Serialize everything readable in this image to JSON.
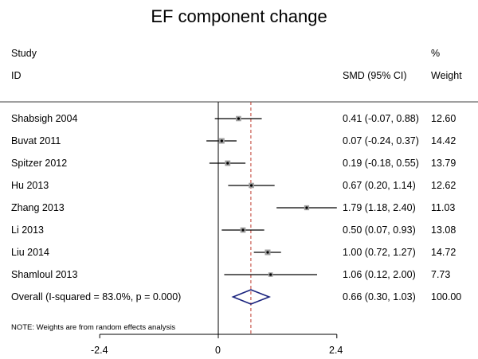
{
  "chart_data": {
    "type": "forest",
    "title": "EF component change",
    "headers": {
      "study_line1": "Study",
      "study_line2": "ID",
      "effect": "SMD (95% CI)",
      "weight_line1": "%",
      "weight_line2": "Weight"
    },
    "studies": [
      {
        "label": "Shabsigh 2004",
        "smd": 0.41,
        "lo": -0.07,
        "hi": 0.88,
        "ci_text": "0.41 (-0.07, 0.88)",
        "weight": 12.6,
        "weight_text": "12.60"
      },
      {
        "label": "Buvat 2011",
        "smd": 0.07,
        "lo": -0.24,
        "hi": 0.37,
        "ci_text": "0.07 (-0.24, 0.37)",
        "weight": 14.42,
        "weight_text": "14.42"
      },
      {
        "label": "Spitzer 2012",
        "smd": 0.19,
        "lo": -0.18,
        "hi": 0.55,
        "ci_text": "0.19 (-0.18, 0.55)",
        "weight": 13.79,
        "weight_text": "13.79"
      },
      {
        "label": "Hu 2013",
        "smd": 0.67,
        "lo": 0.2,
        "hi": 1.14,
        "ci_text": "0.67 (0.20, 1.14)",
        "weight": 12.62,
        "weight_text": "12.62"
      },
      {
        "label": "Zhang 2013",
        "smd": 1.79,
        "lo": 1.18,
        "hi": 2.4,
        "ci_text": "1.79 (1.18, 2.40)",
        "weight": 11.03,
        "weight_text": "11.03"
      },
      {
        "label": "Li 2013",
        "smd": 0.5,
        "lo": 0.07,
        "hi": 0.93,
        "ci_text": "0.50 (0.07, 0.93)",
        "weight": 13.08,
        "weight_text": "13.08"
      },
      {
        "label": "Liu 2014",
        "smd": 1.0,
        "lo": 0.72,
        "hi": 1.27,
        "ci_text": "1.00 (0.72, 1.27)",
        "weight": 14.72,
        "weight_text": "14.72"
      },
      {
        "label": "Shamloul 2013",
        "smd": 1.06,
        "lo": 0.12,
        "hi": 2.0,
        "ci_text": "1.06 (0.12, 2.00)",
        "weight": 7.73,
        "weight_text": "7.73"
      }
    ],
    "overall": {
      "label": "Overall  (I-squared = 83.0%, p = 0.000)",
      "smd": 0.66,
      "lo": 0.3,
      "hi": 1.03,
      "ci_text": "0.66 (0.30, 1.03)",
      "weight_text": "100.00"
    },
    "note": "NOTE: Weights are from random effects analysis",
    "x_ticks": [
      -2.4,
      0,
      2.4
    ],
    "x_tick_labels": [
      "-2.4",
      "0",
      "2.4"
    ],
    "xlim": [
      -2.4,
      2.4
    ],
    "null_value": 0,
    "colors": {
      "line": "#000000",
      "overall_marker": "#1a237e",
      "pooled_ref_line": "#c0392b",
      "box": "#9e9e9e"
    }
  }
}
